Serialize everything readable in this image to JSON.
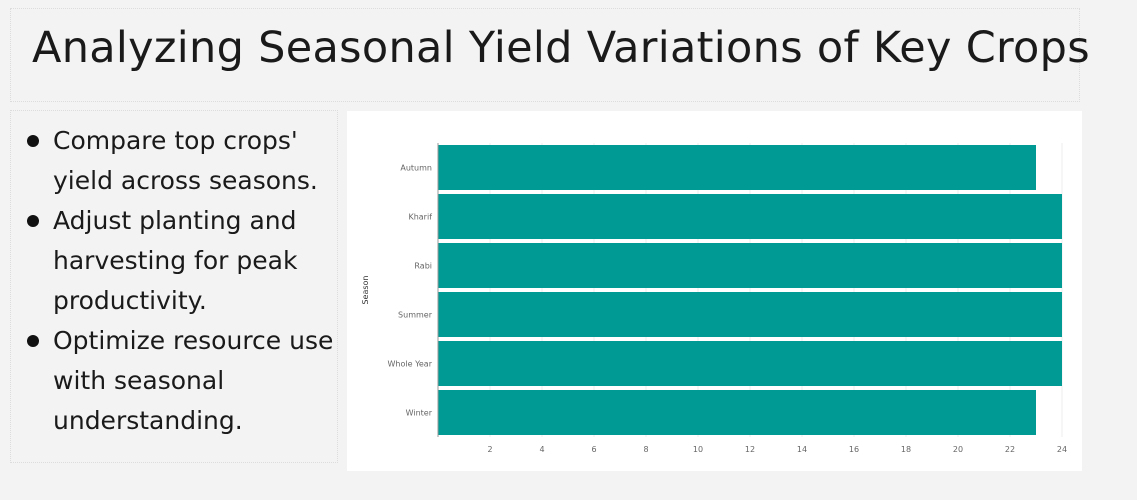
{
  "title": "Analyzing Seasonal Yield Variations of Key Crops",
  "bullets": [
    "Compare top crops' yield across seasons.",
    "Adjust planting and harvesting for peak productivity.",
    "Optimize resource use with seasonal understanding."
  ],
  "colors": {
    "bar": "#009a94",
    "background": "#f3f3f3",
    "panel": "#ffffff",
    "grid": "#eeeeee"
  },
  "chart_data": {
    "type": "bar",
    "orientation": "horizontal",
    "categories": [
      "Autumn",
      "Kharif",
      "Rabi",
      "Summer",
      "Whole Year",
      "Winter"
    ],
    "values": [
      23,
      24,
      24,
      24,
      24,
      23
    ],
    "ylabel": "Season",
    "xlabel": "",
    "xlim": [
      0,
      24
    ],
    "xticks": [
      2,
      4,
      6,
      8,
      10,
      12,
      14,
      16,
      18,
      20,
      22,
      24
    ],
    "grid": true,
    "legend": "none"
  }
}
